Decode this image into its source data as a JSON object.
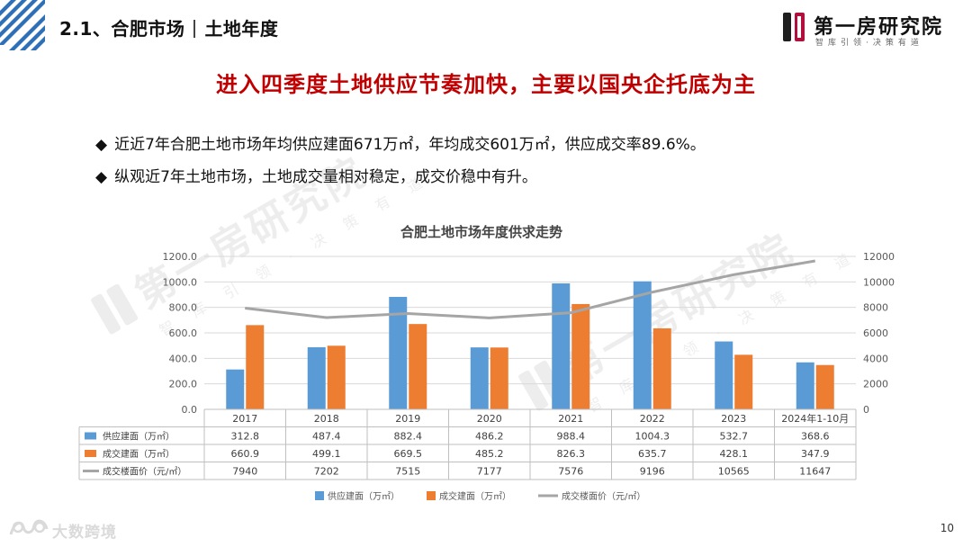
{
  "header": {
    "section": "2.1、合肥市场",
    "subsection": "土地年度"
  },
  "brand": {
    "name": "第一房研究院",
    "slogan": "智库引领·决策有道"
  },
  "headline": "进入四季度土地供应节奏加快，主要以国央企托底为主",
  "bullets": [
    "近近7年合肥土地市场年均供应建面671万㎡，年均成交601万㎡，供应成交率89.6%。",
    "纵观近7年土地市场，土地成交量相对稳定，成交价稳中有升。"
  ],
  "watermark": {
    "text": "第一房研究院",
    "slogan": "智 库 引 领 · 决 策 有 道"
  },
  "footer": {
    "brand": "大数跨境",
    "page_number": "10"
  },
  "colors": {
    "supply": "#5b9bd5",
    "deal": "#ed7d31",
    "price": "#a5a5a5",
    "headline": "#c00000"
  },
  "chart_data": {
    "type": "bar",
    "title": "合肥土地市场年度供求走势",
    "categories": [
      "2017",
      "2018",
      "2019",
      "2020",
      "2021",
      "2022",
      "2023",
      "2024年1-10月"
    ],
    "series": [
      {
        "name": "供应建面（万㎡）",
        "type": "bar",
        "axis": "left",
        "values": [
          312.8,
          487.4,
          882.4,
          486.2,
          988.4,
          1004.3,
          532.7,
          368.6
        ]
      },
      {
        "name": "成交建面（万㎡）",
        "type": "bar",
        "axis": "left",
        "values": [
          660.9,
          499.1,
          669.5,
          485.2,
          826.3,
          635.7,
          428.1,
          347.9
        ]
      },
      {
        "name": "成交楼面价（元/㎡）",
        "type": "line",
        "axis": "right",
        "values": [
          7940,
          7202,
          7515,
          7177,
          7576,
          9196,
          10565,
          11647
        ]
      }
    ],
    "y_left": {
      "range": [
        0,
        1200
      ],
      "ticks": [
        "0.0",
        "200.0",
        "400.0",
        "600.0",
        "800.0",
        "1000.0",
        "1200.0"
      ]
    },
    "y_right": {
      "range": [
        0,
        12000
      ],
      "ticks": [
        "0",
        "2000",
        "4000",
        "6000",
        "8000",
        "10000",
        "12000"
      ]
    },
    "grid": true,
    "legend_position": "bottom",
    "data_table": true
  }
}
